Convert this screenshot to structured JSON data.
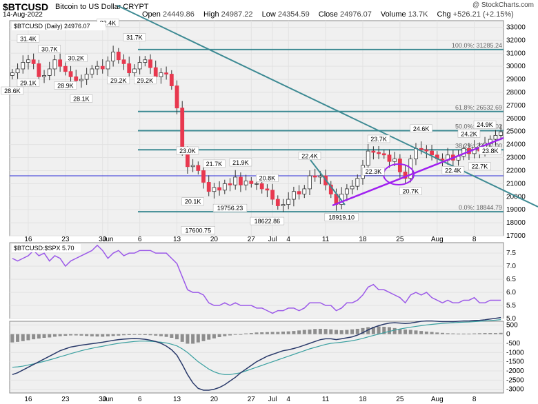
{
  "header": {
    "symbol": "$BTCUSD",
    "name": "Bitcoin to US Dollar  CRYPT",
    "date": "14-Aug-2022",
    "ohlc": [
      {
        "k": "Open",
        "v": "24449.86"
      },
      {
        "k": "High",
        "v": "24987.22"
      },
      {
        "k": "Low",
        "v": "24354.59"
      },
      {
        "k": "Close",
        "v": "24976.07"
      },
      {
        "k": "Volume",
        "v": "13.7K"
      },
      {
        "k": "Chg",
        "v": "+526.21 (+2.15%)"
      }
    ],
    "watermark": "@ StockCharts.com"
  },
  "colors": {
    "up": "#ffffff",
    "down": "#e8384f",
    "teal": "#3d8a93",
    "purple": "#a020f0",
    "blue": "#2b2bd9",
    "ratio": "#9b59e8"
  },
  "chart_data": [
    {
      "type": "candlestick",
      "legend": "$BTCUSD (Daily) 24976.07",
      "ylim": [
        17000,
        33500
      ],
      "yticks": [
        17000,
        18000,
        19000,
        20000,
        21000,
        22000,
        23000,
        24000,
        25000,
        26000,
        27000,
        28000,
        29000,
        30000,
        31000,
        32000,
        33000
      ],
      "x_labels": [
        {
          "i": 3,
          "t": "16"
        },
        {
          "i": 10,
          "t": "23"
        },
        {
          "i": 17,
          "t": "30"
        },
        {
          "i": 18,
          "t": "Jun"
        },
        {
          "i": 24,
          "t": "6"
        },
        {
          "i": 31,
          "t": "13"
        },
        {
          "i": 38,
          "t": "20"
        },
        {
          "i": 45,
          "t": "27"
        },
        {
          "i": 49,
          "t": "Jul"
        },
        {
          "i": 52,
          "t": "4"
        },
        {
          "i": 59,
          "t": "11"
        },
        {
          "i": 66,
          "t": "18"
        },
        {
          "i": 73,
          "t": "25"
        },
        {
          "i": 80,
          "t": "Aug"
        },
        {
          "i": 87,
          "t": "8"
        }
      ],
      "closes": [
        29500,
        29800,
        30300,
        30500,
        30200,
        29200,
        29300,
        29800,
        30500,
        30000,
        29600,
        29200,
        28900,
        29000,
        29400,
        29800,
        30000,
        29800,
        30400,
        31100,
        30500,
        30200,
        29500,
        29800,
        30300,
        30500,
        29900,
        29200,
        29500,
        29400,
        28500,
        26800,
        23500,
        22300,
        22400,
        22000,
        21100,
        20400,
        20700,
        20500,
        21000,
        20900,
        21500,
        20900,
        21200,
        21000,
        21000,
        20600,
        20500,
        19800,
        19300,
        19400,
        19800,
        20400,
        20200,
        20600,
        21600,
        21500,
        21600,
        20900,
        20200,
        19400,
        20200,
        20600,
        20800,
        21400,
        22400,
        23500,
        23400,
        23300,
        23200,
        22700,
        22900,
        21900,
        21400,
        22900,
        23700,
        23600,
        23500,
        23200,
        22900,
        22800,
        23200,
        22800,
        23100,
        23700,
        23300,
        23800,
        23500,
        24100,
        24400,
        24700,
        24976
      ],
      "fib": [
        {
          "pct": "100.0%: 31285.24",
          "y": 31285
        },
        {
          "pct": "61.8%: 26532.69",
          "y": 26532
        },
        {
          "pct": "50.0%: 25065.02",
          "y": 25065
        },
        {
          "pct": "38.2%: 23597.00",
          "y": 23597
        },
        {
          "pct": "0.0%: 18844.79",
          "y": 18844
        }
      ],
      "hline": 21600,
      "annotations": [
        {
          "t": "31.4K",
          "i": 3,
          "y": 32000
        },
        {
          "t": "32.4K",
          "i": 18,
          "y": 33200
        },
        {
          "t": "31.7K",
          "i": 23,
          "y": 32100
        },
        {
          "t": "30.7K",
          "i": 7,
          "y": 31200
        },
        {
          "t": "30.2K",
          "i": 12,
          "y": 30500
        },
        {
          "t": "29.1K",
          "i": 3,
          "y": 28600
        },
        {
          "t": "28.6K",
          "i": 0,
          "y": 28000
        },
        {
          "t": "28.9K",
          "i": 10,
          "y": 28400
        },
        {
          "t": "28.1K",
          "i": 13,
          "y": 27400
        },
        {
          "t": "29.2K",
          "i": 20,
          "y": 28800
        },
        {
          "t": "29.2K",
          "i": 25,
          "y": 28800
        },
        {
          "t": "23.0K",
          "i": 33,
          "y": 23400
        },
        {
          "t": "20.1K",
          "i": 34,
          "y": 19500
        },
        {
          "t": "21.7K",
          "i": 38,
          "y": 22400
        },
        {
          "t": "21.9K",
          "i": 43,
          "y": 22500
        },
        {
          "t": "19756.23",
          "i": 41,
          "y": 19000
        },
        {
          "t": "17600.75",
          "i": 35,
          "y": 17300
        },
        {
          "t": "20.8K",
          "i": 48,
          "y": 21300
        },
        {
          "t": "18622.86",
          "i": 48,
          "y": 18000
        },
        {
          "t": "22.4K",
          "i": 56,
          "y": 23000
        },
        {
          "t": "18919.10",
          "i": 62,
          "y": 18300
        },
        {
          "t": "23.7K",
          "i": 69,
          "y": 24300
        },
        {
          "t": "22.3K",
          "i": 68,
          "y": 21800
        },
        {
          "t": "20.7K",
          "i": 75,
          "y": 20300
        },
        {
          "t": "24.6K",
          "i": 77,
          "y": 25100
        },
        {
          "t": "22.4K",
          "i": 83,
          "y": 21900
        },
        {
          "t": "24.2K",
          "i": 86,
          "y": 24700
        },
        {
          "t": "24.9K",
          "i": 89,
          "y": 25400
        },
        {
          "t": "23.8K",
          "i": 90,
          "y": 23400
        },
        {
          "t": "22.7K",
          "i": 88,
          "y": 22200
        }
      ]
    },
    {
      "type": "line",
      "legend": "$BTCUSD:$SPX 5.70",
      "ylim": [
        5,
        7.9
      ],
      "yticks": [
        5.0,
        5.5,
        6.0,
        6.5,
        7.0,
        7.5
      ],
      "values": [
        7.3,
        7.2,
        7.3,
        7.4,
        7.6,
        7.4,
        7.5,
        7.2,
        7.4,
        7.3,
        7.0,
        7.2,
        7.3,
        7.4,
        7.5,
        7.6,
        7.8,
        7.6,
        7.3,
        7.5,
        7.6,
        7.4,
        7.5,
        7.5,
        7.6,
        7.6,
        7.6,
        7.5,
        7.5,
        7.5,
        7.3,
        7.1,
        6.6,
        6.1,
        6.0,
        6.0,
        5.9,
        5.6,
        5.5,
        5.5,
        5.6,
        5.5,
        5.6,
        5.5,
        5.5,
        5.5,
        5.4,
        5.4,
        5.3,
        5.2,
        5.3,
        5.3,
        5.4,
        5.4,
        5.3,
        5.4,
        5.6,
        5.6,
        5.6,
        5.5,
        5.5,
        5.3,
        5.4,
        5.6,
        5.6,
        5.7,
        5.9,
        6.2,
        6.3,
        6.1,
        6.1,
        6.0,
        5.9,
        5.8,
        5.6,
        5.9,
        6.0,
        5.9,
        6.0,
        5.8,
        5.7,
        5.6,
        5.7,
        5.6,
        5.6,
        5.7,
        5.7,
        5.8,
        5.6,
        5.6,
        5.7,
        5.7,
        5.7
      ]
    },
    {
      "type": "histogram+line",
      "ylim": [
        -3200,
        700
      ],
      "yticks": [
        500,
        0,
        -500,
        -1000,
        -1500,
        -2000,
        -2500,
        -3000
      ],
      "histogram": [
        -450,
        -420,
        -380,
        -330,
        -280,
        -240,
        -200,
        -180,
        -140,
        -110,
        -90,
        -70,
        -70,
        -80,
        -100,
        -120,
        -130,
        -140,
        -120,
        -100,
        -80,
        -60,
        -50,
        -40,
        -40,
        -50,
        -60,
        -80,
        -110,
        -150,
        -200,
        -280,
        -420,
        -520,
        -520,
        -450,
        -380,
        -300,
        -230,
        -160,
        -110,
        -70,
        -30,
        0,
        40,
        60,
        90,
        100,
        110,
        120,
        120,
        140,
        150,
        170,
        200,
        230,
        250,
        280,
        290,
        280,
        260,
        230,
        210,
        230,
        260,
        290,
        330,
        380,
        400,
        420,
        400,
        380,
        330,
        280,
        250,
        230,
        200,
        170,
        140,
        120,
        90,
        70,
        50,
        40,
        30,
        30,
        30,
        40,
        50,
        60,
        60,
        60,
        70
      ],
      "macd": [
        -2200,
        -2100,
        -1950,
        -1800,
        -1650,
        -1500,
        -1350,
        -1200,
        -1050,
        -900,
        -800,
        -700,
        -650,
        -600,
        -560,
        -520,
        -480,
        -440,
        -390,
        -340,
        -300,
        -270,
        -250,
        -240,
        -250,
        -280,
        -330,
        -400,
        -500,
        -650,
        -850,
        -1150,
        -1650,
        -2200,
        -2650,
        -2950,
        -3050,
        -3050,
        -3000,
        -2900,
        -2750,
        -2550,
        -2350,
        -2100,
        -1900,
        -1700,
        -1500,
        -1350,
        -1200,
        -1100,
        -1000,
        -900,
        -850,
        -780,
        -700,
        -600,
        -500,
        -400,
        -300,
        -250,
        -250,
        -300,
        -250,
        -200,
        -150,
        -50,
        80,
        230,
        360,
        460,
        540,
        600,
        620,
        600,
        580,
        600,
        650,
        700,
        720,
        720,
        700,
        680,
        680,
        680,
        700,
        720,
        720,
        740,
        750,
        780,
        820,
        860,
        900
      ],
      "signal": [
        -1800,
        -1780,
        -1740,
        -1680,
        -1620,
        -1550,
        -1480,
        -1400,
        -1320,
        -1230,
        -1150,
        -1060,
        -980,
        -900,
        -830,
        -770,
        -710,
        -660,
        -600,
        -550,
        -500,
        -460,
        -430,
        -400,
        -380,
        -380,
        -390,
        -410,
        -440,
        -480,
        -550,
        -640,
        -800,
        -1000,
        -1250,
        -1500,
        -1700,
        -1900,
        -2050,
        -2150,
        -2200,
        -2200,
        -2150,
        -2100,
        -2000,
        -1900,
        -1800,
        -1700,
        -1600,
        -1500,
        -1400,
        -1300,
        -1200,
        -1100,
        -1000,
        -900,
        -800,
        -720,
        -640,
        -560,
        -500,
        -470,
        -440,
        -400,
        -360,
        -300,
        -230,
        -150,
        -70,
        0,
        80,
        150,
        220,
        280,
        330,
        380,
        420,
        460,
        500,
        530,
        560,
        580,
        600,
        620,
        640,
        650,
        660,
        680,
        700,
        720,
        740,
        760,
        790
      ]
    }
  ]
}
